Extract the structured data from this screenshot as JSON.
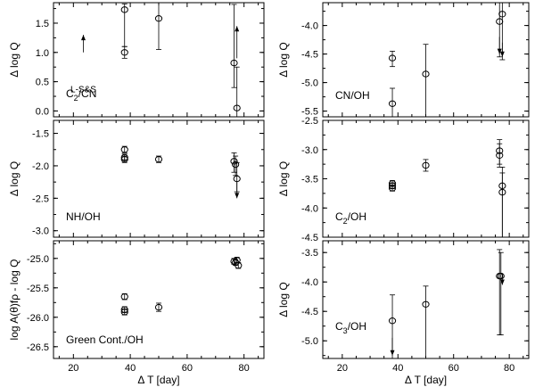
{
  "chart_data": [
    {
      "id": "c2cn",
      "type": "scatter",
      "label": "C2/CN",
      "label_sub": "2",
      "label_pre": "C",
      "label_post": "/CN",
      "ylabel": "Δ log Q",
      "xlabel": "",
      "xlim": [
        13,
        87
      ],
      "ylim": [
        -0.1,
        1.85
      ],
      "yticks": [
        0.0,
        0.5,
        1.0,
        1.5
      ],
      "ytick_labels": [
        "0.0",
        "0.5",
        "1.0",
        "1.5"
      ],
      "xticks": [
        20,
        40,
        60,
        80
      ],
      "xtick_labels": [
        "",
        "",
        "",
        ""
      ],
      "annotation": "L-S&S",
      "points": [
        {
          "x": 38,
          "y": 1.73,
          "lo": 1.1,
          "hi": 1.83
        },
        {
          "x": 38,
          "y": 1.0,
          "lo": 0.9,
          "hi": 1.1
        },
        {
          "x": 50,
          "y": 1.58,
          "lo": 1.05,
          "hi": 1.85
        },
        {
          "x": 76.5,
          "y": 0.82,
          "lo": 0.4,
          "hi": 1.82
        },
        {
          "x": 77.5,
          "y": 0.05,
          "lo": -0.1,
          "hi": 0.75
        }
      ],
      "arrows": [
        {
          "x": 23.5,
          "from": 1.0,
          "to": 1.3,
          "dir": "up"
        },
        {
          "x": 77.5,
          "from": 0.9,
          "to": 1.45,
          "dir": "up"
        }
      ]
    },
    {
      "id": "cnoh",
      "type": "scatter",
      "label": "CN/OH",
      "ylabel": "Δ log Q",
      "xlabel": "",
      "xlim": [
        13,
        87
      ],
      "ylim": [
        -5.6,
        -3.6
      ],
      "yticks": [
        -5.5,
        -5.0,
        -4.5,
        -4.0
      ],
      "ytick_labels": [
        "-5.5",
        "-5.0",
        "-4.5",
        "-4.0"
      ],
      "xticks": [
        20,
        40,
        60,
        80
      ],
      "xtick_labels": [
        "",
        "",
        "",
        ""
      ],
      "points": [
        {
          "x": 38,
          "y": -4.57,
          "lo": -4.72,
          "hi": -4.45
        },
        {
          "x": 38,
          "y": -5.37,
          "lo": -5.6,
          "hi": -5.1
        },
        {
          "x": 50,
          "y": -4.85,
          "lo": -5.6,
          "hi": -4.33
        },
        {
          "x": 76.5,
          "y": -3.93,
          "lo": -4.55,
          "hi": -3.6
        },
        {
          "x": 77.5,
          "y": -3.8,
          "lo": -4.6,
          "hi": -3.6
        }
      ],
      "arrows": [
        {
          "x": 76.5,
          "from": -4.2,
          "to": -4.5,
          "dir": "down"
        },
        {
          "x": 77.5,
          "from": -4.3,
          "to": -4.55,
          "dir": "down"
        }
      ]
    },
    {
      "id": "nhoh",
      "type": "scatter",
      "label": "NH/OH",
      "ylabel": "Δ log Q",
      "xlabel": "",
      "xlim": [
        13,
        87
      ],
      "ylim": [
        -3.1,
        -1.3
      ],
      "yticks": [
        -3.0,
        -2.5,
        -2.0,
        -1.5
      ],
      "ytick_labels": [
        "-3.0",
        "-2.5",
        "-2.0",
        "-1.5"
      ],
      "xticks": [
        20,
        40,
        60,
        80
      ],
      "xtick_labels": [
        "",
        "",
        "",
        ""
      ],
      "points": [
        {
          "x": 38,
          "y": -1.75,
          "lo": -1.8,
          "hi": -1.7
        },
        {
          "x": 38,
          "y": -1.87,
          "lo": -1.92,
          "hi": -1.82
        },
        {
          "x": 38,
          "y": -1.9,
          "lo": -1.95,
          "hi": -1.85
        },
        {
          "x": 50,
          "y": -1.9,
          "lo": -1.95,
          "hi": -1.85
        },
        {
          "x": 76.5,
          "y": -1.93,
          "lo": -2.1,
          "hi": -1.8
        },
        {
          "x": 77,
          "y": -1.98,
          "lo": -2.15,
          "hi": -1.85
        },
        {
          "x": 77.5,
          "y": -2.2,
          "lo": -2.4,
          "hi": -1.95
        }
      ],
      "arrows": [
        {
          "x": 77.5,
          "from": -2.25,
          "to": -2.5,
          "dir": "down"
        }
      ]
    },
    {
      "id": "c2oh",
      "type": "scatter",
      "label": "C2/OH",
      "label_pre": "C",
      "label_sub": "2",
      "label_post": "/OH",
      "ylabel": "Δ log Q",
      "xlabel": "",
      "xlim": [
        13,
        87
      ],
      "ylim": [
        -4.5,
        -2.5
      ],
      "yticks": [
        -4.5,
        -4.0,
        -3.5,
        -3.0,
        -2.5
      ],
      "ytick_labels": [
        "-4.5",
        "-4.0",
        "-3.5",
        "-3.0",
        "-2.5"
      ],
      "xticks": [
        20,
        40,
        60,
        80
      ],
      "xtick_labels": [
        "",
        "",
        "",
        ""
      ],
      "points": [
        {
          "x": 38,
          "y": -3.58,
          "lo": -3.63,
          "hi": -3.53
        },
        {
          "x": 38,
          "y": -3.62,
          "lo": -3.67,
          "hi": -3.57
        },
        {
          "x": 38,
          "y": -3.66,
          "lo": -3.71,
          "hi": -3.61
        },
        {
          "x": 50,
          "y": -3.27,
          "lo": -3.37,
          "hi": -3.17
        },
        {
          "x": 76.5,
          "y": -3.02,
          "lo": -3.25,
          "hi": -2.83
        },
        {
          "x": 76.5,
          "y": -3.1,
          "lo": -3.3,
          "hi": -2.9
        },
        {
          "x": 77.5,
          "y": -3.62,
          "lo": -4.5,
          "hi": -3.3
        },
        {
          "x": 77.5,
          "y": -3.73,
          "lo": -4.5,
          "hi": -3.4
        }
      ],
      "arrows": []
    },
    {
      "id": "green",
      "type": "scatter",
      "label": "Green Cont./OH",
      "ylabel": "log A(θ)fρ - log Q",
      "xlabel": "Δ T [day]",
      "xlim": [
        13,
        87
      ],
      "ylim": [
        -26.7,
        -24.7
      ],
      "yticks": [
        -26.5,
        -26.0,
        -25.5,
        -25.0
      ],
      "ytick_labels": [
        "-26.5",
        "-26.0",
        "-25.5",
        "-25.0"
      ],
      "xticks": [
        20,
        40,
        60,
        80
      ],
      "xtick_labels": [
        "20",
        "40",
        "60",
        "80"
      ],
      "points": [
        {
          "x": 38,
          "y": -25.65,
          "lo": -25.7,
          "hi": -25.6
        },
        {
          "x": 38,
          "y": -25.87,
          "lo": -25.92,
          "hi": -25.82
        },
        {
          "x": 38,
          "y": -25.91,
          "lo": -25.96,
          "hi": -25.86
        },
        {
          "x": 50,
          "y": -25.83,
          "lo": -25.9,
          "hi": -25.76
        },
        {
          "x": 76.5,
          "y": -25.05,
          "lo": -25.1,
          "hi": -25.0
        },
        {
          "x": 77,
          "y": -25.07,
          "lo": -25.12,
          "hi": -25.02
        },
        {
          "x": 77.5,
          "y": -25.03,
          "lo": -25.08,
          "hi": -24.98
        },
        {
          "x": 78,
          "y": -25.12,
          "lo": -25.17,
          "hi": -25.07
        }
      ],
      "arrows": []
    },
    {
      "id": "c3oh",
      "type": "scatter",
      "label": "C3/OH",
      "label_pre": "C",
      "label_sub": "3",
      "label_post": "/OH",
      "ylabel": "Δ log Q",
      "xlabel": "Δ T [day]",
      "xlim": [
        13,
        87
      ],
      "ylim": [
        -5.3,
        -3.3
      ],
      "yticks": [
        -5.0,
        -4.5,
        -4.0,
        -3.5
      ],
      "ytick_labels": [
        "-5.0",
        "-4.5",
        "-4.0",
        "-3.5"
      ],
      "xticks": [
        20,
        40,
        60,
        80
      ],
      "xtick_labels": [
        "20",
        "40",
        "60",
        "80"
      ],
      "points": [
        {
          "x": 38,
          "y": -4.66,
          "lo": -5.3,
          "hi": -4.22
        },
        {
          "x": 50,
          "y": -4.38,
          "lo": -5.3,
          "hi": -4.07
        },
        {
          "x": 76.5,
          "y": -3.9,
          "lo": -4.9,
          "hi": -3.45
        },
        {
          "x": 77,
          "y": -3.9,
          "lo": -4.9,
          "hi": -3.5
        }
      ],
      "arrows": [
        {
          "x": 38,
          "from": -4.95,
          "to": -5.25,
          "dir": "down"
        },
        {
          "x": 77.5,
          "from": -3.85,
          "to": -4.05,
          "dir": "down"
        }
      ]
    }
  ]
}
